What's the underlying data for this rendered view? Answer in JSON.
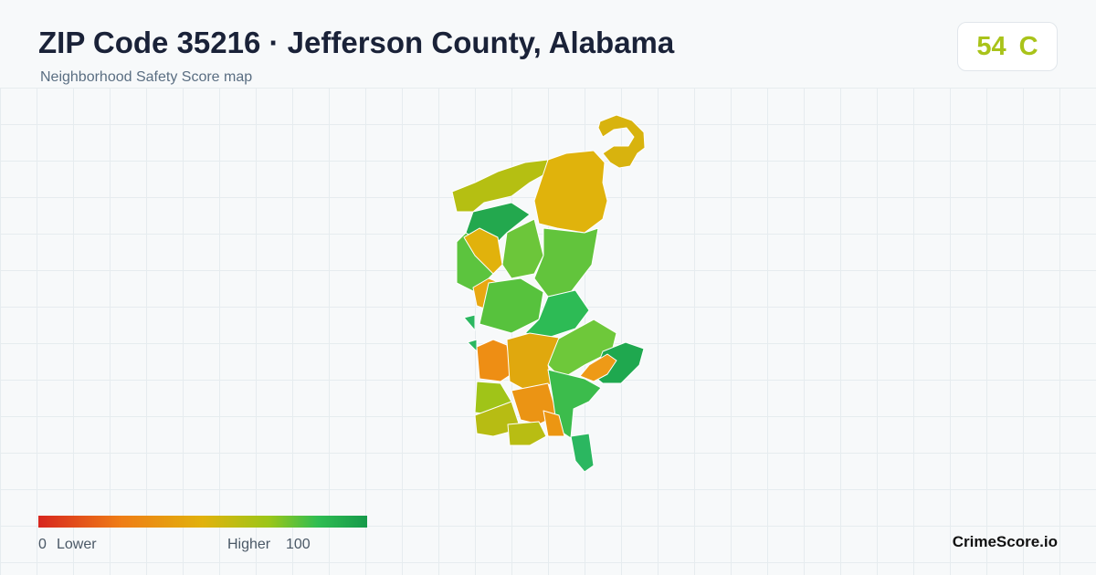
{
  "header": {
    "title": "ZIP Code 35216 · Jefferson County, Alabama",
    "subtitle": "Neighborhood Safety Score map"
  },
  "score": {
    "value": 54,
    "grade": "C"
  },
  "legend": {
    "min": 0,
    "min_label": "Lower",
    "max_label": "Higher",
    "max": 100
  },
  "brand": "CrimeScore.io"
}
